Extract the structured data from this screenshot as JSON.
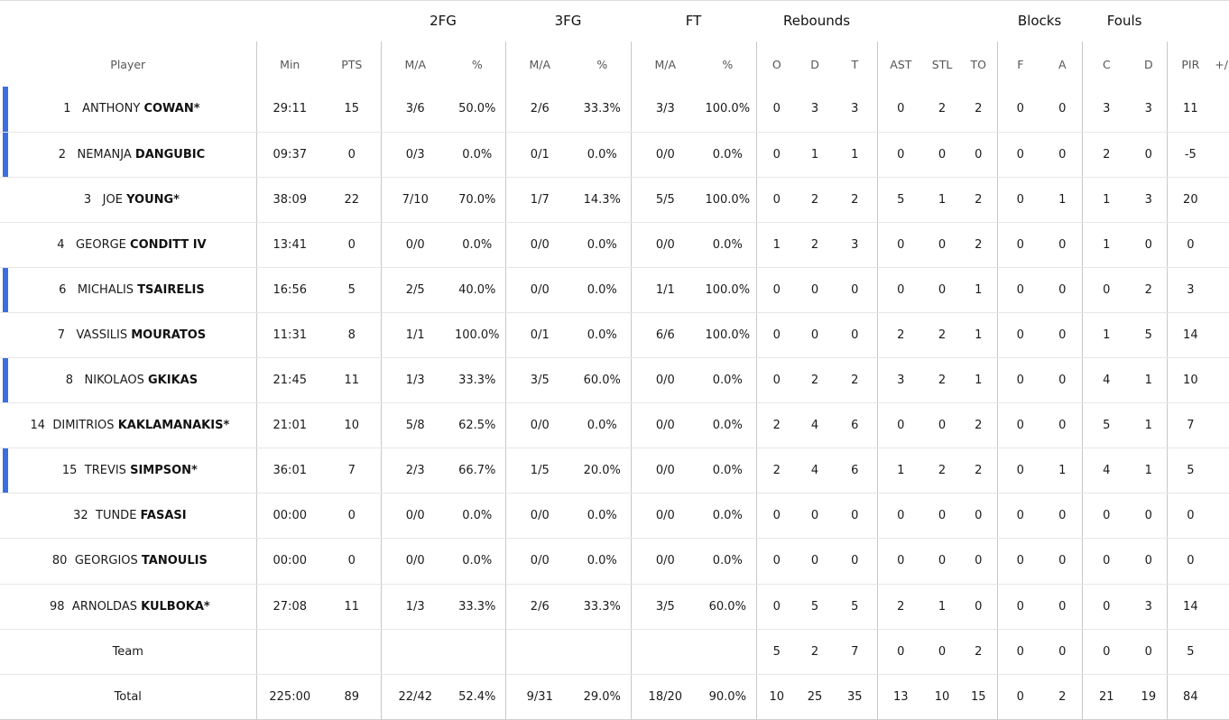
{
  "groups": {
    "fg2": "2FG",
    "fg3": "3FG",
    "ft": "FT",
    "rebounds": "Rebounds",
    "blocks": "Blocks",
    "fouls": "Fouls"
  },
  "headers": {
    "player": "Player",
    "min": "Min",
    "pts": "PTS",
    "fg2_ma": "M/A",
    "fg2_pct": "%",
    "fg3_ma": "M/A",
    "fg3_pct": "%",
    "ft_ma": "M/A",
    "ft_pct": "%",
    "reb_o": "O",
    "reb_d": "D",
    "reb_t": "T",
    "ast": "AST",
    "stl": "STL",
    "to": "TO",
    "blk_f": "F",
    "blk_a": "A",
    "foul_c": "C",
    "foul_d": "D",
    "pir": "PIR",
    "plus_minus": "+/"
  },
  "colors": {
    "marker": "#3b6fe0"
  },
  "players": [
    {
      "num": "1",
      "first": "ANTHONY",
      "last": "COWAN",
      "star": "*",
      "marker": true,
      "min": "29:11",
      "pts": "15",
      "fg2_ma": "3/6",
      "fg2_pct": "50.0%",
      "fg3_ma": "2/6",
      "fg3_pct": "33.3%",
      "ft_ma": "3/3",
      "ft_pct": "100.0%",
      "reb_o": "0",
      "reb_d": "3",
      "reb_t": "3",
      "ast": "0",
      "stl": "2",
      "to": "2",
      "blk_f": "0",
      "blk_a": "0",
      "foul_c": "3",
      "foul_d": "3",
      "pir": "11"
    },
    {
      "num": "2",
      "first": "NEMANJA",
      "last": "DANGUBIC",
      "star": "",
      "marker": true,
      "min": "09:37",
      "pts": "0",
      "fg2_ma": "0/3",
      "fg2_pct": "0.0%",
      "fg3_ma": "0/1",
      "fg3_pct": "0.0%",
      "ft_ma": "0/0",
      "ft_pct": "0.0%",
      "reb_o": "0",
      "reb_d": "1",
      "reb_t": "1",
      "ast": "0",
      "stl": "0",
      "to": "0",
      "blk_f": "0",
      "blk_a": "0",
      "foul_c": "2",
      "foul_d": "0",
      "pir": "-5"
    },
    {
      "num": "3",
      "first": "JOE",
      "last": "YOUNG",
      "star": "*",
      "marker": false,
      "min": "38:09",
      "pts": "22",
      "fg2_ma": "7/10",
      "fg2_pct": "70.0%",
      "fg3_ma": "1/7",
      "fg3_pct": "14.3%",
      "ft_ma": "5/5",
      "ft_pct": "100.0%",
      "reb_o": "0",
      "reb_d": "2",
      "reb_t": "2",
      "ast": "5",
      "stl": "1",
      "to": "2",
      "blk_f": "0",
      "blk_a": "1",
      "foul_c": "1",
      "foul_d": "3",
      "pir": "20"
    },
    {
      "num": "4",
      "first": "GEORGE",
      "last": "CONDITT IV",
      "star": "",
      "marker": false,
      "min": "13:41",
      "pts": "0",
      "fg2_ma": "0/0",
      "fg2_pct": "0.0%",
      "fg3_ma": "0/0",
      "fg3_pct": "0.0%",
      "ft_ma": "0/0",
      "ft_pct": "0.0%",
      "reb_o": "1",
      "reb_d": "2",
      "reb_t": "3",
      "ast": "0",
      "stl": "0",
      "to": "2",
      "blk_f": "0",
      "blk_a": "0",
      "foul_c": "1",
      "foul_d": "0",
      "pir": "0"
    },
    {
      "num": "6",
      "first": "MICHALIS",
      "last": "TSAIRELIS",
      "star": "",
      "marker": true,
      "min": "16:56",
      "pts": "5",
      "fg2_ma": "2/5",
      "fg2_pct": "40.0%",
      "fg3_ma": "0/0",
      "fg3_pct": "0.0%",
      "ft_ma": "1/1",
      "ft_pct": "100.0%",
      "reb_o": "0",
      "reb_d": "0",
      "reb_t": "0",
      "ast": "0",
      "stl": "0",
      "to": "1",
      "blk_f": "0",
      "blk_a": "0",
      "foul_c": "0",
      "foul_d": "2",
      "pir": "3"
    },
    {
      "num": "7",
      "first": "VASSILIS",
      "last": "MOURATOS",
      "star": "",
      "marker": false,
      "min": "11:31",
      "pts": "8",
      "fg2_ma": "1/1",
      "fg2_pct": "100.0%",
      "fg3_ma": "0/1",
      "fg3_pct": "0.0%",
      "ft_ma": "6/6",
      "ft_pct": "100.0%",
      "reb_o": "0",
      "reb_d": "0",
      "reb_t": "0",
      "ast": "2",
      "stl": "2",
      "to": "1",
      "blk_f": "0",
      "blk_a": "0",
      "foul_c": "1",
      "foul_d": "5",
      "pir": "14"
    },
    {
      "num": "8",
      "first": "NIKOLAOS",
      "last": "GKIKAS",
      "star": "",
      "marker": true,
      "min": "21:45",
      "pts": "11",
      "fg2_ma": "1/3",
      "fg2_pct": "33.3%",
      "fg3_ma": "3/5",
      "fg3_pct": "60.0%",
      "ft_ma": "0/0",
      "ft_pct": "0.0%",
      "reb_o": "0",
      "reb_d": "2",
      "reb_t": "2",
      "ast": "3",
      "stl": "2",
      "to": "1",
      "blk_f": "0",
      "blk_a": "0",
      "foul_c": "4",
      "foul_d": "1",
      "pir": "10"
    },
    {
      "num": "14",
      "first": "DIMITRIOS",
      "last": "KAKLAMANAKIS",
      "star": "*",
      "marker": false,
      "min": "21:01",
      "pts": "10",
      "fg2_ma": "5/8",
      "fg2_pct": "62.5%",
      "fg3_ma": "0/0",
      "fg3_pct": "0.0%",
      "ft_ma": "0/0",
      "ft_pct": "0.0%",
      "reb_o": "2",
      "reb_d": "4",
      "reb_t": "6",
      "ast": "0",
      "stl": "0",
      "to": "2",
      "blk_f": "0",
      "blk_a": "0",
      "foul_c": "5",
      "foul_d": "1",
      "pir": "7"
    },
    {
      "num": "15",
      "first": "TREVIS",
      "last": "SIMPSON",
      "star": "*",
      "marker": true,
      "min": "36:01",
      "pts": "7",
      "fg2_ma": "2/3",
      "fg2_pct": "66.7%",
      "fg3_ma": "1/5",
      "fg3_pct": "20.0%",
      "ft_ma": "0/0",
      "ft_pct": "0.0%",
      "reb_o": "2",
      "reb_d": "4",
      "reb_t": "6",
      "ast": "1",
      "stl": "2",
      "to": "2",
      "blk_f": "0",
      "blk_a": "1",
      "foul_c": "4",
      "foul_d": "1",
      "pir": "5"
    },
    {
      "num": "32",
      "first": "TUNDE",
      "last": "FASASI",
      "star": "",
      "marker": false,
      "min": "00:00",
      "pts": "0",
      "fg2_ma": "0/0",
      "fg2_pct": "0.0%",
      "fg3_ma": "0/0",
      "fg3_pct": "0.0%",
      "ft_ma": "0/0",
      "ft_pct": "0.0%",
      "reb_o": "0",
      "reb_d": "0",
      "reb_t": "0",
      "ast": "0",
      "stl": "0",
      "to": "0",
      "blk_f": "0",
      "blk_a": "0",
      "foul_c": "0",
      "foul_d": "0",
      "pir": "0"
    },
    {
      "num": "80",
      "first": "GEORGIOS",
      "last": "TANOULIS",
      "star": "",
      "marker": false,
      "min": "00:00",
      "pts": "0",
      "fg2_ma": "0/0",
      "fg2_pct": "0.0%",
      "fg3_ma": "0/0",
      "fg3_pct": "0.0%",
      "ft_ma": "0/0",
      "ft_pct": "0.0%",
      "reb_o": "0",
      "reb_d": "0",
      "reb_t": "0",
      "ast": "0",
      "stl": "0",
      "to": "0",
      "blk_f": "0",
      "blk_a": "0",
      "foul_c": "0",
      "foul_d": "0",
      "pir": "0"
    },
    {
      "num": "98",
      "first": "ARNOLDAS",
      "last": "KULBOKA",
      "star": "*",
      "marker": false,
      "min": "27:08",
      "pts": "11",
      "fg2_ma": "1/3",
      "fg2_pct": "33.3%",
      "fg3_ma": "2/6",
      "fg3_pct": "33.3%",
      "ft_ma": "3/5",
      "ft_pct": "60.0%",
      "reb_o": "0",
      "reb_d": "5",
      "reb_t": "5",
      "ast": "2",
      "stl": "1",
      "to": "0",
      "blk_f": "0",
      "blk_a": "0",
      "foul_c": "0",
      "foul_d": "3",
      "pir": "14"
    }
  ],
  "team": {
    "label": "Team",
    "min": "",
    "pts": "",
    "fg2_ma": "",
    "fg2_pct": "",
    "fg3_ma": "",
    "fg3_pct": "",
    "ft_ma": "",
    "ft_pct": "",
    "reb_o": "5",
    "reb_d": "2",
    "reb_t": "7",
    "ast": "0",
    "stl": "0",
    "to": "2",
    "blk_f": "0",
    "blk_a": "0",
    "foul_c": "0",
    "foul_d": "0",
    "pir": "5"
  },
  "total": {
    "label": "Total",
    "min": "225:00",
    "pts": "89",
    "fg2_ma": "22/42",
    "fg2_pct": "52.4%",
    "fg3_ma": "9/31",
    "fg3_pct": "29.0%",
    "ft_ma": "18/20",
    "ft_pct": "90.0%",
    "reb_o": "10",
    "reb_d": "25",
    "reb_t": "35",
    "ast": "13",
    "stl": "10",
    "to": "15",
    "blk_f": "0",
    "blk_a": "2",
    "foul_c": "21",
    "foul_d": "19",
    "pir": "84"
  }
}
